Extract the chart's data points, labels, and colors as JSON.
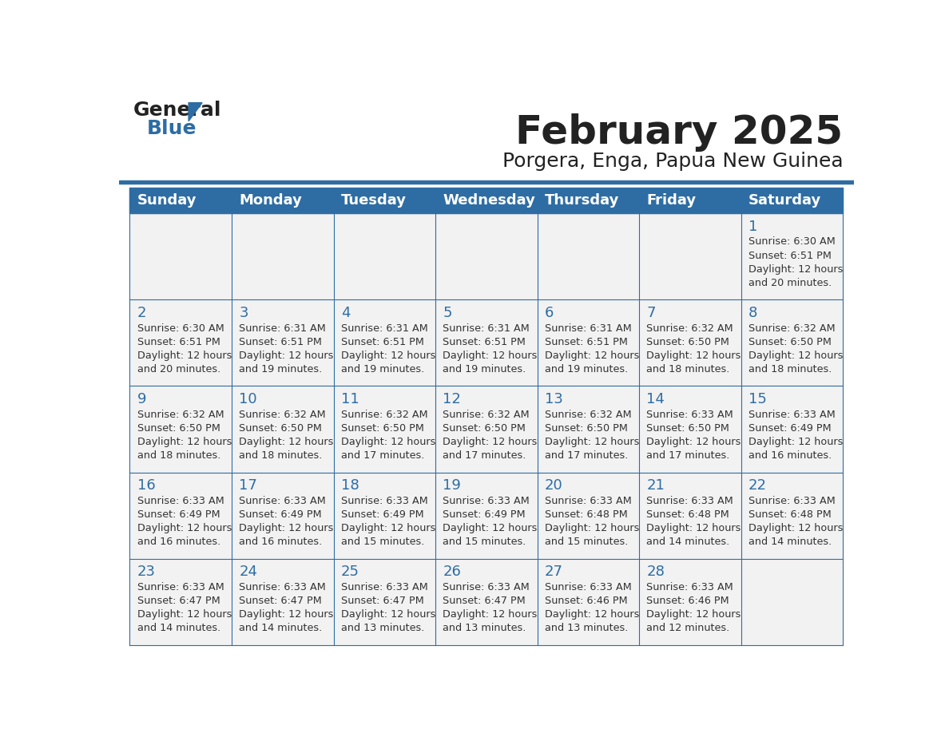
{
  "title": "February 2025",
  "subtitle": "Porgera, Enga, Papua New Guinea",
  "days_of_week": [
    "Sunday",
    "Monday",
    "Tuesday",
    "Wednesday",
    "Thursday",
    "Friday",
    "Saturday"
  ],
  "header_bg": "#2E6DA4",
  "header_text_color": "#FFFFFF",
  "cell_bg_light": "#F2F2F2",
  "cell_bg_white": "#FFFFFF",
  "divider_color": "#2E6DA4",
  "day_number_color": "#2E6DA4",
  "cell_text_color": "#333333",
  "title_color": "#222222",
  "subtitle_color": "#222222",
  "logo_general_color": "#222222",
  "logo_blue_color": "#2E6DA4",
  "weeks": [
    [
      null,
      null,
      null,
      null,
      null,
      null,
      {
        "day": 1,
        "sunrise": "6:30 AM",
        "sunset": "6:51 PM",
        "daylight": "12 hours and 20 minutes."
      }
    ],
    [
      {
        "day": 2,
        "sunrise": "6:30 AM",
        "sunset": "6:51 PM",
        "daylight": "12 hours and 20 minutes."
      },
      {
        "day": 3,
        "sunrise": "6:31 AM",
        "sunset": "6:51 PM",
        "daylight": "12 hours and 19 minutes."
      },
      {
        "day": 4,
        "sunrise": "6:31 AM",
        "sunset": "6:51 PM",
        "daylight": "12 hours and 19 minutes."
      },
      {
        "day": 5,
        "sunrise": "6:31 AM",
        "sunset": "6:51 PM",
        "daylight": "12 hours and 19 minutes."
      },
      {
        "day": 6,
        "sunrise": "6:31 AM",
        "sunset": "6:51 PM",
        "daylight": "12 hours and 19 minutes."
      },
      {
        "day": 7,
        "sunrise": "6:32 AM",
        "sunset": "6:50 PM",
        "daylight": "12 hours and 18 minutes."
      },
      {
        "day": 8,
        "sunrise": "6:32 AM",
        "sunset": "6:50 PM",
        "daylight": "12 hours and 18 minutes."
      }
    ],
    [
      {
        "day": 9,
        "sunrise": "6:32 AM",
        "sunset": "6:50 PM",
        "daylight": "12 hours and 18 minutes."
      },
      {
        "day": 10,
        "sunrise": "6:32 AM",
        "sunset": "6:50 PM",
        "daylight": "12 hours and 18 minutes."
      },
      {
        "day": 11,
        "sunrise": "6:32 AM",
        "sunset": "6:50 PM",
        "daylight": "12 hours and 17 minutes."
      },
      {
        "day": 12,
        "sunrise": "6:32 AM",
        "sunset": "6:50 PM",
        "daylight": "12 hours and 17 minutes."
      },
      {
        "day": 13,
        "sunrise": "6:32 AM",
        "sunset": "6:50 PM",
        "daylight": "12 hours and 17 minutes."
      },
      {
        "day": 14,
        "sunrise": "6:33 AM",
        "sunset": "6:50 PM",
        "daylight": "12 hours and 17 minutes."
      },
      {
        "day": 15,
        "sunrise": "6:33 AM",
        "sunset": "6:49 PM",
        "daylight": "12 hours and 16 minutes."
      }
    ],
    [
      {
        "day": 16,
        "sunrise": "6:33 AM",
        "sunset": "6:49 PM",
        "daylight": "12 hours and 16 minutes."
      },
      {
        "day": 17,
        "sunrise": "6:33 AM",
        "sunset": "6:49 PM",
        "daylight": "12 hours and 16 minutes."
      },
      {
        "day": 18,
        "sunrise": "6:33 AM",
        "sunset": "6:49 PM",
        "daylight": "12 hours and 15 minutes."
      },
      {
        "day": 19,
        "sunrise": "6:33 AM",
        "sunset": "6:49 PM",
        "daylight": "12 hours and 15 minutes."
      },
      {
        "day": 20,
        "sunrise": "6:33 AM",
        "sunset": "6:48 PM",
        "daylight": "12 hours and 15 minutes."
      },
      {
        "day": 21,
        "sunrise": "6:33 AM",
        "sunset": "6:48 PM",
        "daylight": "12 hours and 14 minutes."
      },
      {
        "day": 22,
        "sunrise": "6:33 AM",
        "sunset": "6:48 PM",
        "daylight": "12 hours and 14 minutes."
      }
    ],
    [
      {
        "day": 23,
        "sunrise": "6:33 AM",
        "sunset": "6:47 PM",
        "daylight": "12 hours and 14 minutes."
      },
      {
        "day": 24,
        "sunrise": "6:33 AM",
        "sunset": "6:47 PM",
        "daylight": "12 hours and 14 minutes."
      },
      {
        "day": 25,
        "sunrise": "6:33 AM",
        "sunset": "6:47 PM",
        "daylight": "12 hours and 13 minutes."
      },
      {
        "day": 26,
        "sunrise": "6:33 AM",
        "sunset": "6:47 PM",
        "daylight": "12 hours and 13 minutes."
      },
      {
        "day": 27,
        "sunrise": "6:33 AM",
        "sunset": "6:46 PM",
        "daylight": "12 hours and 13 minutes."
      },
      {
        "day": 28,
        "sunrise": "6:33 AM",
        "sunset": "6:46 PM",
        "daylight": "12 hours and 12 minutes."
      },
      null
    ]
  ]
}
